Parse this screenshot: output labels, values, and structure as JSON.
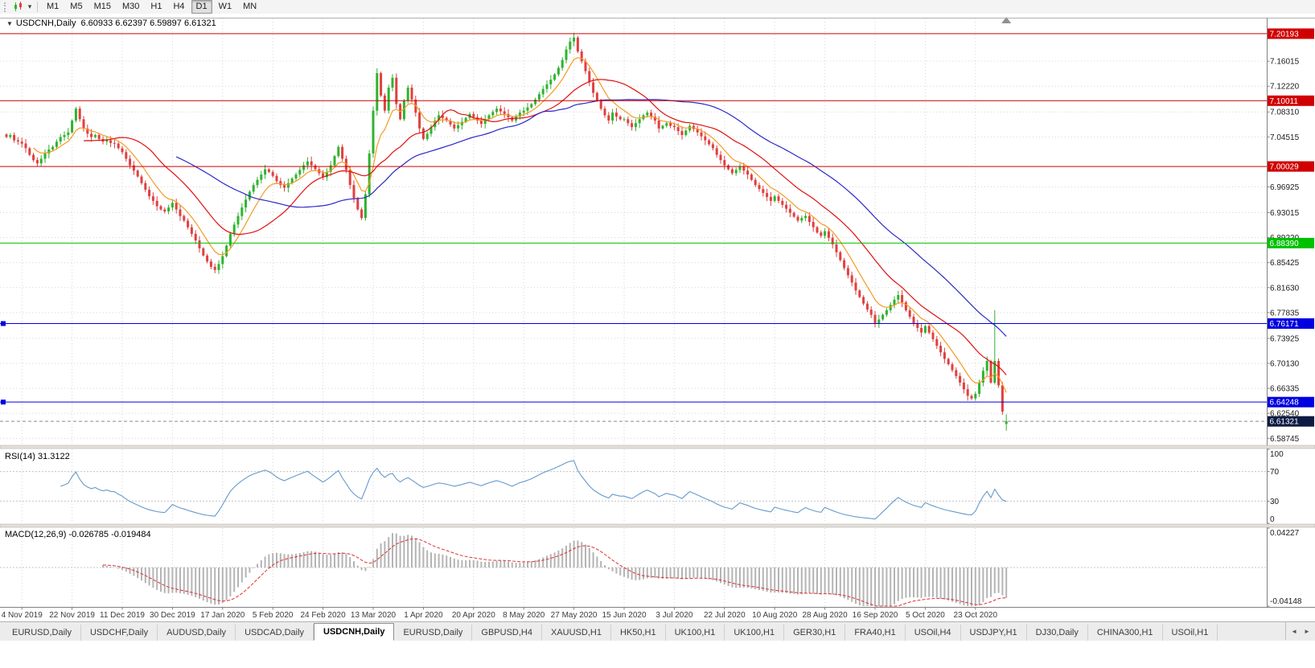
{
  "toolbar": {
    "timeframes": [
      "M1",
      "M5",
      "M15",
      "M30",
      "H1",
      "H4",
      "D1",
      "W1",
      "MN"
    ],
    "active_timeframe": "D1",
    "dropdown_icon": "▾"
  },
  "chart": {
    "title": "USDCNH,Daily",
    "ohlc_text": "6.60933 6.62397 6.59897 6.61321",
    "collapse_icon": "▼"
  },
  "colors": {
    "candle_up": "#2fb32f",
    "candle_down": "#e04040",
    "line_red": "#d00000",
    "line_green": "#00c000",
    "line_blue": "#0000e0",
    "current_price_box": "#0d1b42",
    "rsi_line": "#6699cc",
    "macd_hist": "#b4b4b4",
    "macd_signal": "#e03030",
    "grid": "#d6d6d6",
    "axis_text": "#1a1a1a"
  },
  "chart_data": {
    "type": "candlestick",
    "symbol": "USDCNH",
    "timeframe": "Daily",
    "last_candle": {
      "o": 6.60933,
      "h": 6.62397,
      "l": 6.59897,
      "c": 6.61321
    },
    "x_labels": [
      "4 Nov 2019",
      "22 Nov 2019",
      "11 Dec 2019",
      "30 Dec 2019",
      "17 Jan 2020",
      "5 Feb 2020",
      "24 Feb 2020",
      "13 Mar 2020",
      "1 Apr 2020",
      "20 Apr 2020",
      "8 May 2020",
      "27 May 2020",
      "15 Jun 2020",
      "3 Jul 2020",
      "22 Jul 2020",
      "10 Aug 2020",
      "28 Aug 2020",
      "16 Sep 2020",
      "5 Oct 2020",
      "23 Oct 2020"
    ],
    "x_label_bars": [
      4,
      17,
      30,
      43,
      56,
      69,
      82,
      95,
      108,
      121,
      134,
      147,
      160,
      173,
      186,
      199,
      212,
      225,
      238,
      251
    ],
    "closes": [
      7.045,
      7.048,
      7.04,
      7.038,
      7.035,
      7.028,
      7.018,
      7.01,
      7.005,
      7.012,
      7.02,
      7.026,
      7.03,
      7.038,
      7.045,
      7.048,
      7.052,
      7.07,
      7.088,
      7.072,
      7.058,
      7.05,
      7.045,
      7.048,
      7.042,
      7.038,
      7.04,
      7.036,
      7.035,
      7.028,
      7.022,
      7.012,
      7.002,
      6.994,
      6.985,
      6.975,
      6.965,
      6.955,
      6.948,
      6.94,
      6.935,
      6.932,
      6.938,
      6.945,
      6.935,
      6.925,
      6.918,
      6.908,
      6.898,
      6.888,
      6.876,
      6.865,
      6.856,
      6.848,
      6.843,
      6.852,
      6.864,
      6.88,
      6.898,
      6.912,
      6.925,
      6.938,
      6.95,
      6.962,
      6.972,
      6.98,
      6.988,
      6.996,
      6.992,
      6.986,
      6.978,
      6.972,
      6.968,
      6.975,
      6.982,
      6.988,
      6.995,
      7.002,
      7.008,
      7.002,
      6.996,
      6.99,
      6.984,
      6.992,
      7.002,
      7.016,
      7.03,
      7.012,
      6.995,
      6.972,
      6.952,
      6.935,
      6.922,
      6.958,
      7.02,
      7.085,
      7.142,
      7.108,
      7.085,
      7.12,
      7.135,
      7.095,
      7.072,
      7.1,
      7.12,
      7.102,
      7.082,
      7.058,
      7.042,
      7.05,
      7.06,
      7.07,
      7.078,
      7.074,
      7.07,
      7.064,
      7.058,
      7.063,
      7.068,
      7.074,
      7.08,
      7.075,
      7.07,
      7.065,
      7.072,
      7.078,
      7.083,
      7.088,
      7.084,
      7.08,
      7.075,
      7.07,
      7.076,
      7.082,
      7.085,
      7.09,
      7.095,
      7.102,
      7.11,
      7.118,
      7.125,
      7.132,
      7.14,
      7.15,
      7.162,
      7.178,
      7.19,
      7.196,
      7.175,
      7.16,
      7.145,
      7.128,
      7.112,
      7.1,
      7.088,
      7.078,
      7.07,
      7.082,
      7.076,
      7.072,
      7.072,
      7.066,
      7.06,
      7.066,
      7.072,
      7.078,
      7.082,
      7.076,
      7.07,
      7.058,
      7.062,
      7.066,
      7.062,
      7.06,
      7.054,
      7.048,
      7.055,
      7.062,
      7.057,
      7.052,
      7.046,
      7.04,
      7.034,
      7.028,
      7.018,
      7.01,
      7.002,
      6.996,
      6.99,
      6.995,
      7.0,
      6.994,
      6.988,
      6.98,
      6.972,
      6.966,
      6.96,
      6.954,
      6.948,
      6.955,
      6.948,
      6.942,
      6.936,
      6.93,
      6.924,
      6.918,
      6.922,
      6.925,
      6.916,
      6.908,
      6.9,
      6.895,
      6.902,
      6.892,
      6.882,
      6.87,
      6.858,
      6.846,
      6.835,
      6.824,
      6.812,
      6.802,
      6.792,
      6.783,
      6.775,
      6.762,
      6.768,
      6.775,
      6.782,
      6.79,
      6.798,
      6.805,
      6.794,
      6.782,
      6.772,
      6.762,
      6.755,
      6.748,
      6.758,
      6.748,
      6.738,
      6.728,
      6.718,
      6.708,
      6.7,
      6.691,
      6.682,
      6.672,
      6.662,
      6.652,
      6.648,
      6.655,
      6.672,
      6.69,
      6.705,
      6.672,
      6.705,
      6.668,
      6.628,
      6.613
    ],
    "wick_spike": {
      "index": 256,
      "high": 6.782
    },
    "price_axis": {
      "min": 6.578,
      "max": 7.225,
      "ticks": [
        "7.16015",
        "7.12220",
        "7.08310",
        "7.04515",
        "6.96925",
        "6.93015",
        "6.89220",
        "6.85425",
        "6.81630",
        "6.77835",
        "6.73925",
        "6.70130",
        "6.66335",
        "6.62540",
        "6.58745"
      ]
    },
    "hlines": [
      {
        "price": 7.20193,
        "label": "7.20193",
        "color": "#d00000"
      },
      {
        "price": 7.10011,
        "label": "7.10011",
        "color": "#d00000"
      },
      {
        "price": 7.00029,
        "label": "7.00029",
        "color": "#d00000"
      },
      {
        "price": 6.8839,
        "label": "6.88390",
        "color": "#00c000"
      },
      {
        "price": 6.76171,
        "label": "6.76171",
        "color": "#0000e0",
        "marker": true
      },
      {
        "price": 6.64248,
        "label": "6.64248",
        "color": "#0000e0",
        "marker": true
      }
    ],
    "current_price": {
      "value": 6.61321,
      "label": "6.61321"
    },
    "ma_lines": [
      {
        "name": "ma-fast-line",
        "period": 8,
        "type": "ema",
        "color": "#f59a23"
      },
      {
        "name": "ma-mid-line",
        "period": 21,
        "type": "sma",
        "color": "#e01010"
      },
      {
        "name": "ma-slow-line",
        "period": 45,
        "type": "sma",
        "color": "#2929c8"
      }
    ],
    "indicators": {
      "rsi": {
        "label": "RSI(14)",
        "value_text": "31.3122",
        "period": 14,
        "levels": [
          30,
          70
        ],
        "axis_ticks": [
          "100",
          "70",
          "30",
          "0"
        ]
      },
      "macd": {
        "label": "MACD(12,26,9)",
        "values_text": "-0.026785 -0.019484",
        "fast": 12,
        "slow": 26,
        "signal": 9,
        "range": [
          -0.04148,
          0.04227
        ],
        "axis_ticks": [
          "0.04227",
          "-0.04148"
        ]
      }
    }
  },
  "tabs": {
    "items": [
      "EURUSD,Daily",
      "USDCHF,Daily",
      "AUDUSD,Daily",
      "USDCAD,Daily",
      "USDCNH,Daily",
      "EURUSD,Daily",
      "GBPUSD,H4",
      "XAUUSD,H1",
      "HK50,H1",
      "UK100,H1",
      "UK100,H1",
      "GER30,H1",
      "FRA40,H1",
      "USOil,H4",
      "USDJPY,H1",
      "DJ30,Daily",
      "CHINA300,H1",
      "USOil,H1"
    ],
    "active_index": 4,
    "scroll_left_icon": "◄",
    "scroll_right_icon": "►"
  }
}
